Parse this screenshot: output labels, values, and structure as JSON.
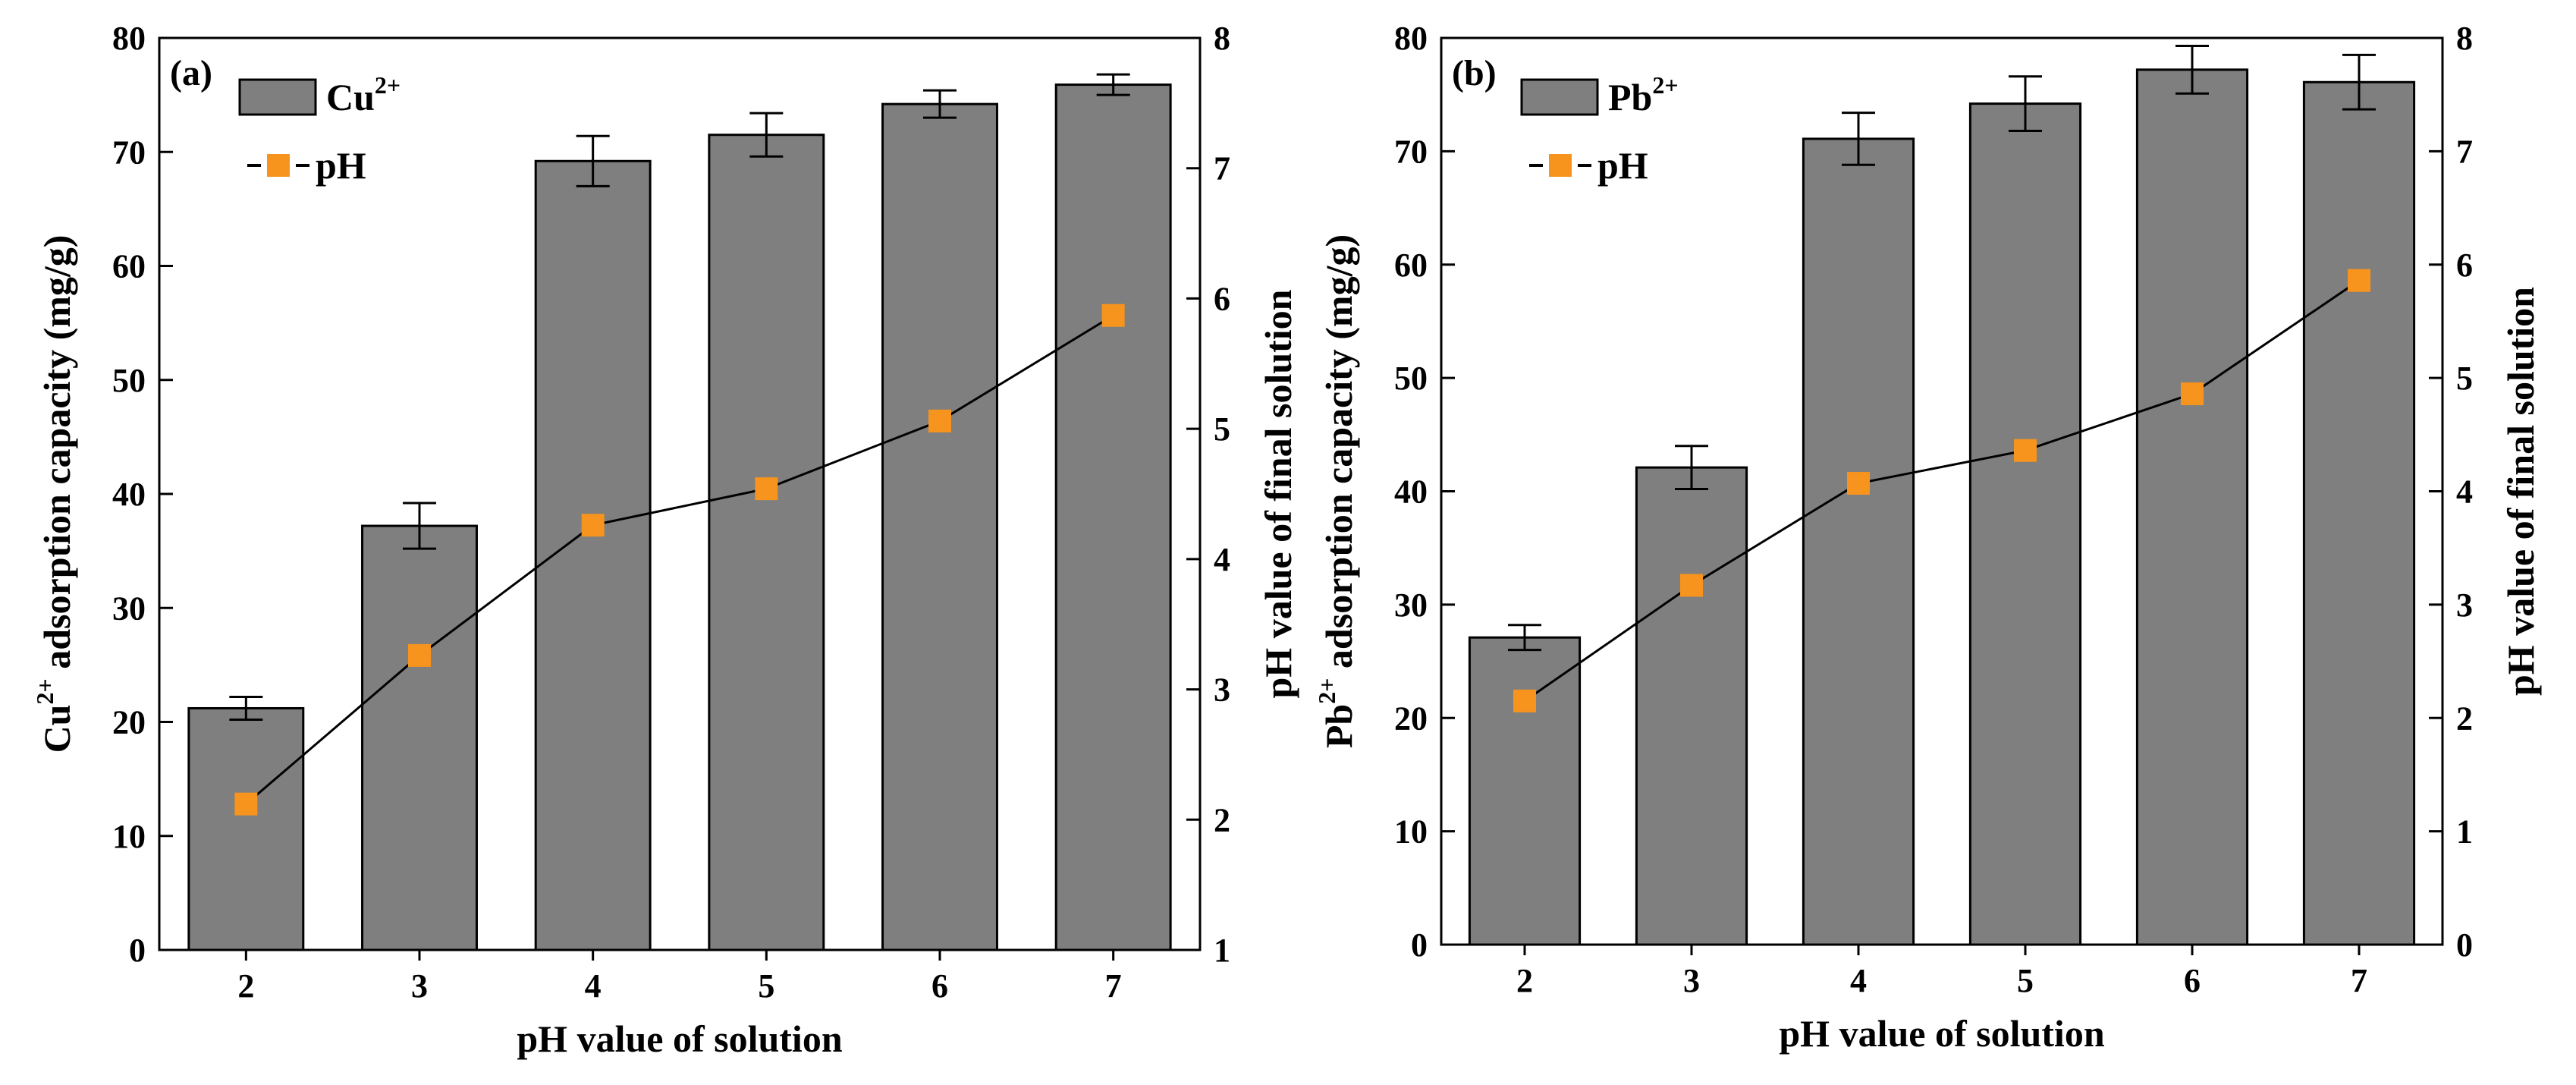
{
  "chart_data": [
    {
      "type": "bar",
      "panel_label": "(a)",
      "categories": [
        "2",
        "3",
        "4",
        "5",
        "6",
        "7"
      ],
      "series": [
        {
          "name": "Cu2+",
          "kind": "bar",
          "axis": "left",
          "values": [
            21.2,
            37.2,
            69.2,
            71.5,
            74.2,
            75.9
          ],
          "errors": [
            1.0,
            2.0,
            2.2,
            1.9,
            1.2,
            0.9
          ]
        },
        {
          "name": "pH",
          "kind": "line",
          "axis": "right",
          "values": [
            2.12,
            3.26,
            4.26,
            4.54,
            5.06,
            5.87
          ]
        }
      ],
      "xlabel": "pH value of solution",
      "ylabel": {
        "base": "Cu",
        "sup": "2+",
        "rest": " adsorption capacity (mg/g)"
      },
      "y2label": "pH value of final solution",
      "legend": {
        "bar": {
          "base": "Cu",
          "sup": "2+"
        },
        "line": "pH"
      },
      "ylim": [
        0,
        80
      ],
      "y2lim": [
        1,
        8
      ],
      "yticks": [
        "0",
        "10",
        "20",
        "30",
        "40",
        "50",
        "60",
        "70",
        "80"
      ],
      "y2ticks": [
        "1",
        "2",
        "3",
        "4",
        "5",
        "6",
        "7",
        "8"
      ]
    },
    {
      "type": "bar",
      "panel_label": "(b)",
      "categories": [
        "2",
        "3",
        "4",
        "5",
        "6",
        "7"
      ],
      "series": [
        {
          "name": "Pb2+",
          "kind": "bar",
          "axis": "left",
          "values": [
            27.1,
            42.1,
            71.1,
            74.2,
            77.2,
            76.1
          ],
          "errors": [
            1.1,
            1.9,
            2.3,
            2.4,
            2.1,
            2.4
          ]
        },
        {
          "name": "pH",
          "kind": "line",
          "axis": "right",
          "values": [
            2.15,
            3.17,
            4.07,
            4.36,
            4.86,
            5.86
          ]
        }
      ],
      "xlabel": "pH value of solution",
      "ylabel": {
        "base": "Pb",
        "sup": "2+",
        "rest": " adsorption capacity (mg/g)"
      },
      "y2label": "pH value of final solution",
      "legend": {
        "bar": {
          "base": "Pb",
          "sup": "2+"
        },
        "line": "pH"
      },
      "ylim": [
        0,
        80
      ],
      "y2lim": [
        0,
        8
      ],
      "yticks": [
        "0",
        "10",
        "20",
        "30",
        "40",
        "50",
        "60",
        "70",
        "80"
      ],
      "y2ticks": [
        "0",
        "1",
        "2",
        "3",
        "4",
        "5",
        "6",
        "7",
        "8"
      ]
    }
  ],
  "colors": {
    "bar": "#7f7f7f",
    "marker": "#f7941d",
    "line": "#000000"
  }
}
